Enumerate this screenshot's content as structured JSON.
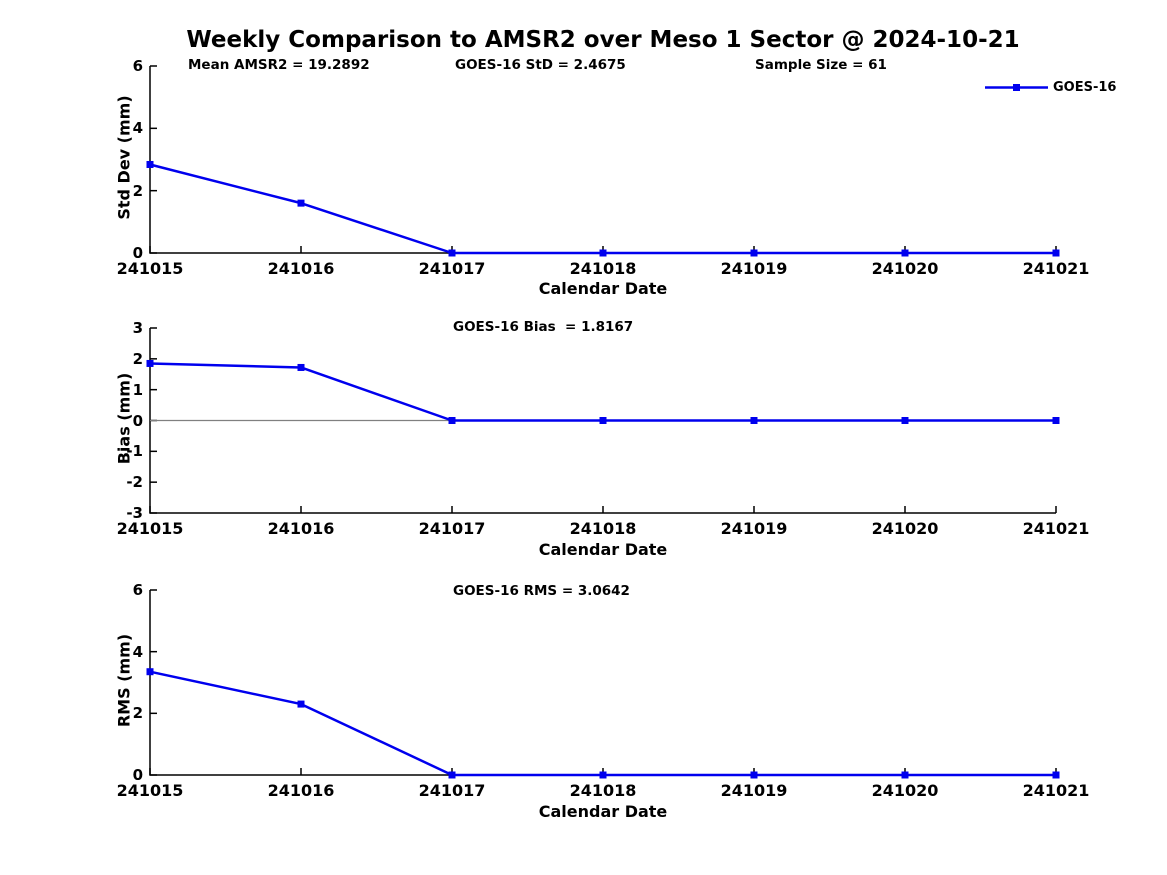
{
  "title": "Weekly Comparison to AMSR2 over Meso 1 Sector @ 2024-10-21",
  "colors": {
    "line": "#0000EE",
    "axis": "#000000",
    "zero_line": "#808080",
    "background": "#FFFFFF",
    "text": "#000000"
  },
  "chart_data": [
    {
      "type": "line",
      "categories": [
        "241015",
        "241016",
        "241017",
        "241018",
        "241019",
        "241020",
        "241021"
      ],
      "series": [
        {
          "name": "GOES-16",
          "color": "#0000EE",
          "marker": "square",
          "values": [
            2.84,
            1.6,
            0,
            0,
            0,
            0,
            0
          ]
        }
      ],
      "xlabel": "Calendar Date",
      "ylabel": "Std Dev (mm)",
      "ylim": [
        0,
        6
      ],
      "yticks": [
        0,
        2,
        4,
        6
      ],
      "grid": false,
      "zero_line": false,
      "legend": {
        "label": "GOES-16",
        "position": "top-right"
      },
      "annotations": [
        "Mean AMSR2 = 19.2892",
        "GOES-16 StD = 2.4675",
        "Sample Size = 61"
      ]
    },
    {
      "type": "line",
      "categories": [
        "241015",
        "241016",
        "241017",
        "241018",
        "241019",
        "241020",
        "241021"
      ],
      "series": [
        {
          "name": "GOES-16",
          "color": "#0000EE",
          "marker": "square",
          "values": [
            1.85,
            1.72,
            0,
            0,
            0,
            0,
            0
          ]
        }
      ],
      "xlabel": "Calendar Date",
      "ylabel": "Bias (mm)",
      "ylim": [
        -3,
        3
      ],
      "yticks": [
        -3,
        -2,
        -1,
        0,
        1,
        2,
        3
      ],
      "grid": false,
      "zero_line": true,
      "annotations": [
        "GOES-16 Bias  = 1.8167"
      ]
    },
    {
      "type": "line",
      "categories": [
        "241015",
        "241016",
        "241017",
        "241018",
        "241019",
        "241020",
        "241021"
      ],
      "series": [
        {
          "name": "GOES-16",
          "color": "#0000EE",
          "marker": "square",
          "values": [
            3.35,
            2.3,
            0,
            0,
            0,
            0,
            0
          ]
        }
      ],
      "xlabel": "Calendar Date",
      "ylabel": "RMS (mm)",
      "ylim": [
        0,
        6
      ],
      "yticks": [
        0,
        2,
        4,
        6
      ],
      "grid": false,
      "zero_line": false,
      "annotations": [
        "GOES-16 RMS = 3.0642"
      ]
    }
  ]
}
